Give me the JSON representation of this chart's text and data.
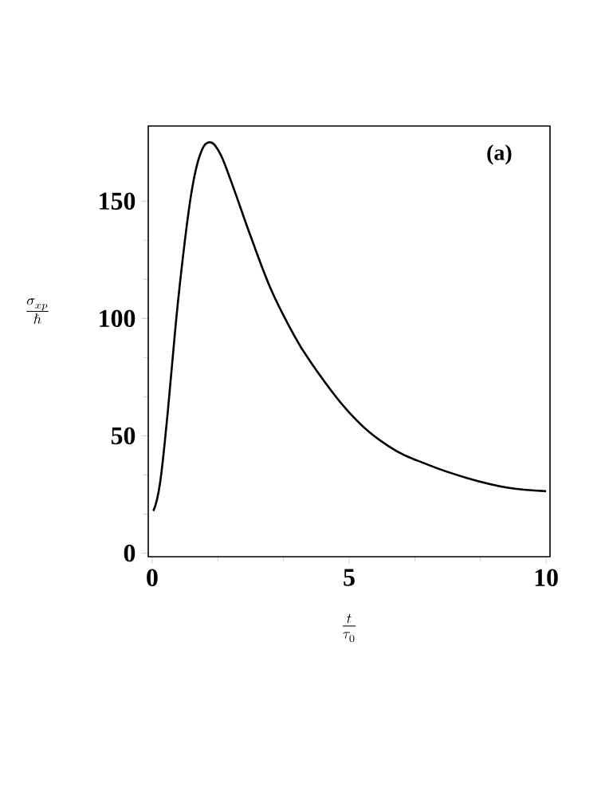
{
  "chart_data": {
    "type": "line",
    "xlabel": "\\frac{t}{\\tau_0}",
    "ylabel": "\\frac{\\sigma_{xp}}{\\hbar}",
    "annotations": [
      "(a)"
    ],
    "x": [
      0.03,
      0.2,
      0.4,
      0.6,
      0.8,
      1.0,
      1.2,
      1.43,
      1.7,
      2.0,
      2.5,
      3.0,
      3.5,
      4.0,
      5.0,
      6.0,
      7.0,
      8.0,
      9.0,
      10.0
    ],
    "series": [
      {
        "color": "#000000",
        "values": [
          18,
          30,
          61,
          98,
          129,
          154,
          169,
          175,
          171,
          158.6,
          135,
          113,
          96,
          82,
          60,
          45.6,
          37.7,
          32,
          28,
          26.4
        ]
      }
    ],
    "xlim": [
      -0.1,
      10.1
    ],
    "ylim": [
      -1.5,
      182
    ],
    "xticks": [
      0,
      5,
      10
    ],
    "yticks": [
      0,
      50,
      100,
      150
    ],
    "grid": false,
    "marker": "none",
    "line_style": "solid"
  }
}
